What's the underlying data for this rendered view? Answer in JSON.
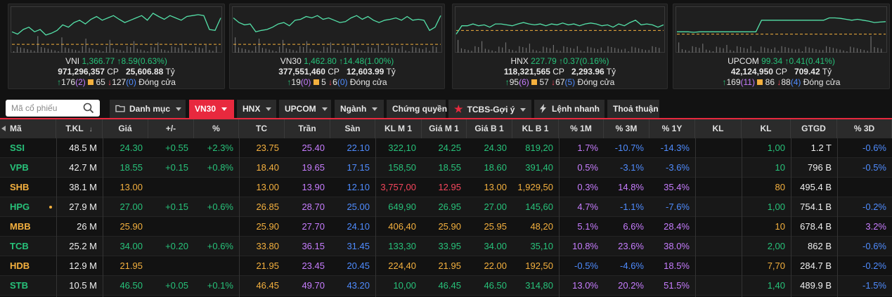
{
  "indices": [
    {
      "name": "VNI",
      "value": "1,366.77",
      "change": "8.59(0.63%)",
      "volume": "971,296,357",
      "volume_unit": "CP",
      "turnover": "25,606.88",
      "turnover_unit": "Tỷ",
      "adv": "176",
      "adv_ceil": "(2)",
      "unch": "65",
      "dec": "127",
      "dec_floor": "(0)",
      "status": "Đóng cửa"
    },
    {
      "name": "VN30",
      "value": "1,462.80",
      "change": "14.48(1.00%)",
      "volume": "377,551,460",
      "volume_unit": "CP",
      "turnover": "12,603.99",
      "turnover_unit": "Tỷ",
      "adv": "19",
      "adv_ceil": "(0)",
      "unch": "5",
      "dec": "6",
      "dec_floor": "(0)",
      "status": "Đóng cửa"
    },
    {
      "name": "HNX",
      "value": "227.79",
      "change": "0.37(0.16%)",
      "volume": "118,321,565",
      "volume_unit": "CP",
      "turnover": "2,293.96",
      "turnover_unit": "Tỷ",
      "adv": "95",
      "adv_ceil": "(6)",
      "unch": "57",
      "dec": "67",
      "dec_floor": "(5)",
      "status": "Đóng cửa"
    },
    {
      "name": "UPCOM",
      "value": "99.34",
      "change": "0.41(0.41%)",
      "volume": "42,124,950",
      "volume_unit": "CP",
      "turnover": "709.42",
      "turnover_unit": "Tỷ",
      "adv": "169",
      "adv_ceil": "(11)",
      "unch": "86",
      "dec": "88",
      "dec_floor": "(4)",
      "status": "Đóng cửa"
    }
  ],
  "toolbar": {
    "search_placeholder": "Mã cổ phiếu",
    "tabs": [
      "Danh mục",
      "VN30",
      "HNX",
      "UPCOM",
      "Ngành",
      "Chứng quyền",
      "TCBS-Gợi ý",
      "Lệnh nhanh",
      "Thoả thuận"
    ]
  },
  "table": {
    "headers": [
      "Mã",
      "T.KL",
      "Giá",
      "+/-",
      "%",
      "TC",
      "Trần",
      "Sàn",
      "KL M 1",
      "Giá M 1",
      "Giá B 1",
      "KL B 1",
      "% 1M",
      "% 3M",
      "% 1Y",
      "KL",
      "KL",
      "GTGD",
      "% 3D"
    ],
    "rows": [
      {
        "sym": "SSI",
        "tkl": "48.5 M",
        "price": "24.30",
        "chg": "+0.55",
        "pct": "+2.3%",
        "tc": "23.75",
        "tran": "25.40",
        "san": "22.10",
        "klm1": "322,10",
        "giam1": "24.25",
        "giab1": "24.30",
        "klb1": "819,20",
        "p1m": "1.7%",
        "p3m": "-10.7%",
        "p1y": "-14.3%",
        "kl1": "",
        "kl2": "1,00",
        "gtgd": "1.2 T",
        "p3d": "-0.6%",
        "c": "up",
        "cm": "up"
      },
      {
        "sym": "VPB",
        "tkl": "42.7 M",
        "price": "18.55",
        "chg": "+0.15",
        "pct": "+0.8%",
        "tc": "18.40",
        "tran": "19.65",
        "san": "17.15",
        "klm1": "158,50",
        "giam1": "18.55",
        "giab1": "18.60",
        "klb1": "391,40",
        "p1m": "0.5%",
        "p3m": "-3.1%",
        "p1y": "-3.6%",
        "kl1": "",
        "kl2": "10",
        "gtgd": "796 B",
        "p3d": "-0.5%",
        "c": "up",
        "cm": "up"
      },
      {
        "sym": "SHB",
        "tkl": "38.1 M",
        "price": "13.00",
        "chg": "",
        "pct": "",
        "tc": "13.00",
        "tran": "13.90",
        "san": "12.10",
        "klm1": "3,757,00",
        "giam1": "12.95",
        "giab1": "13.00",
        "klb1": "1,929,50",
        "p1m": "0.3%",
        "p3m": "14.8%",
        "p1y": "35.4%",
        "kl1": "",
        "kl2": "80",
        "gtgd": "495.4 B",
        "p3d": "",
        "c": "ref",
        "cm": "down"
      },
      {
        "sym": "HPG",
        "tkl": "27.9 M",
        "price": "27.00",
        "chg": "+0.15",
        "pct": "+0.6%",
        "tc": "26.85",
        "tran": "28.70",
        "san": "25.00",
        "klm1": "649,90",
        "giam1": "26.95",
        "giab1": "27.00",
        "klb1": "145,60",
        "p1m": "4.7%",
        "p3m": "-1.1%",
        "p1y": "-7.6%",
        "kl1": "",
        "kl2": "1,00",
        "gtgd": "754.1 B",
        "p3d": "-0.2%",
        "c": "up",
        "cm": "up"
      },
      {
        "sym": "MBB",
        "tkl": "26 M",
        "price": "25.90",
        "chg": "",
        "pct": "",
        "tc": "25.90",
        "tran": "27.70",
        "san": "24.10",
        "klm1": "406,40",
        "giam1": "25.90",
        "giab1": "25.95",
        "klb1": "48,20",
        "p1m": "5.1%",
        "p3m": "6.6%",
        "p1y": "28.4%",
        "kl1": "",
        "kl2": "10",
        "gtgd": "678.4 B",
        "p3d": "3.2%",
        "c": "ref",
        "cm": "ref"
      },
      {
        "sym": "TCB",
        "tkl": "25.2 M",
        "price": "34.00",
        "chg": "+0.20",
        "pct": "+0.6%",
        "tc": "33.80",
        "tran": "36.15",
        "san": "31.45",
        "klm1": "133,30",
        "giam1": "33.95",
        "giab1": "34.00",
        "klb1": "35,10",
        "p1m": "10.8%",
        "p3m": "23.6%",
        "p1y": "38.0%",
        "kl1": "",
        "kl2": "2,00",
        "gtgd": "862 B",
        "p3d": "-0.6%",
        "c": "up",
        "cm": "up"
      },
      {
        "sym": "HDB",
        "tkl": "12.9 M",
        "price": "21.95",
        "chg": "",
        "pct": "",
        "tc": "21.95",
        "tran": "23.45",
        "san": "20.45",
        "klm1": "224,40",
        "giam1": "21.95",
        "giab1": "22.00",
        "klb1": "192,50",
        "p1m": "-0.5%",
        "p3m": "-4.6%",
        "p1y": "18.5%",
        "kl1": "",
        "kl2": "7,70",
        "gtgd": "284.7 B",
        "p3d": "-0.2%",
        "c": "ref",
        "cm": "ref"
      },
      {
        "sym": "STB",
        "tkl": "10.5 M",
        "price": "46.50",
        "chg": "+0.05",
        "pct": "+0.1%",
        "tc": "46.45",
        "tran": "49.70",
        "san": "43.20",
        "klm1": "10,00",
        "giam1": "46.45",
        "giab1": "46.50",
        "klb1": "314,80",
        "p1m": "13.0%",
        "p3m": "20.2%",
        "p1y": "51.5%",
        "kl1": "",
        "kl2": "1,40",
        "gtgd": "489.9 B",
        "p3d": "-1.5%",
        "c": "up",
        "cm": "up"
      }
    ]
  },
  "colors": {
    "up": "#27c27a",
    "ref": "#f4b03e",
    "down": "#f6465d",
    "ceil": "#c77dff",
    "floor": "#4f8cff",
    "accent": "#e8293e"
  }
}
